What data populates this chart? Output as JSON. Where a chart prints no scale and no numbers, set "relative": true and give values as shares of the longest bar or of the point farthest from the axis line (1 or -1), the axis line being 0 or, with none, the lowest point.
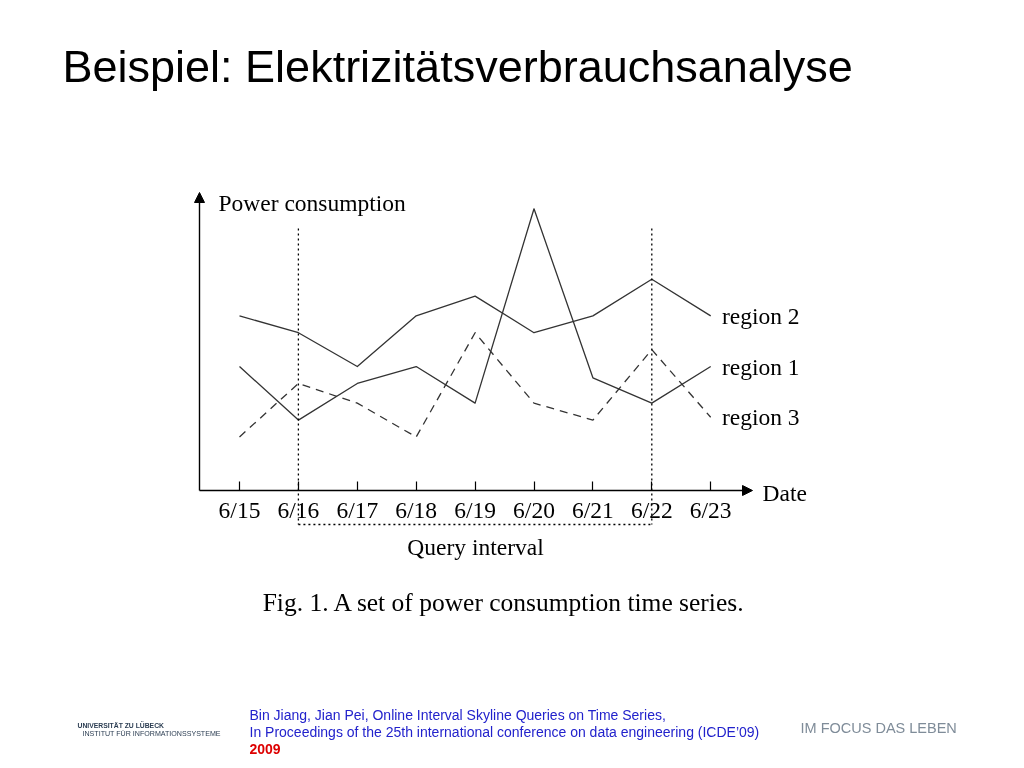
{
  "chart_data": {
    "type": "line",
    "title": "Beispiel: Elektrizitätsverbrauchsanalyse",
    "xlabel": "Date",
    "ylabel": "Power consumption",
    "relative": true,
    "line_style": "solid",
    "categories": [
      "6/15",
      "6/16",
      "6/17",
      "6/18",
      "6/19",
      "6/20",
      "6/21",
      "6/22",
      "6/23"
    ],
    "series": [
      {
        "name": "region 1",
        "color": "#333333",
        "values": [
          0.44,
          0.25,
          0.38,
          0.44,
          0.31,
          1,
          0.4,
          0.31,
          0.44
        ]
      },
      {
        "name": "region 2",
        "color": "#333333",
        "values": [
          0.62,
          0.56,
          0.44,
          0.62,
          0.69,
          0.56,
          0.62,
          0.75,
          0.62
        ]
      },
      {
        "name": "region 3",
        "color": "#333333",
        "line_style": "dashed",
        "values": [
          0.19,
          0.38,
          0.31,
          0.19,
          0.56,
          0.31,
          0.25,
          0.5,
          0.26
        ]
      }
    ],
    "ref_lines": [
      {
        "axis": "x",
        "value": "6/16",
        "line_style": "dotted"
      },
      {
        "axis": "x",
        "value": "6/22",
        "line_style": "dotted"
      }
    ],
    "annotations": [
      "Query interval",
      "Fig. 1. A set of power consumption time series.",
      "Bin Jiang, Jian Pei, Online Interval Skyline Queries on Time Series,",
      "In Proceedings of the 25th international conference on data engineering (ICDE’09)",
      "2009",
      "UNIVERSITÄT ZU LÜBECK",
      "INSTITUT FÜR INFORMATIONSSYSTEME",
      "IM FOCUS DAS LEBEN"
    ]
  }
}
